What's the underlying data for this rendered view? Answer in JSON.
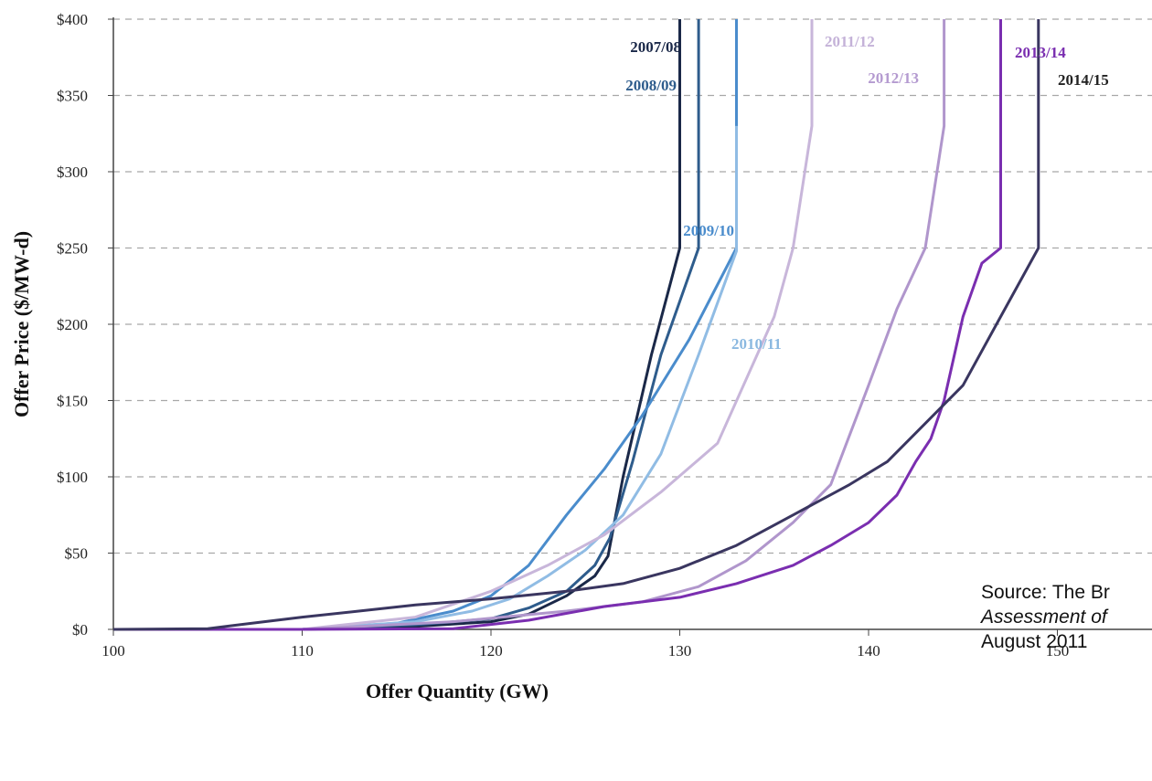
{
  "chart_data": {
    "type": "line",
    "title": "",
    "xlabel": "Offer Quantity (GW)",
    "ylabel": "Offer Price ($/MW-d)",
    "xlim": [
      100,
      155
    ],
    "ylim": [
      0,
      400
    ],
    "x_ticks": [
      100,
      110,
      120,
      130,
      140,
      150
    ],
    "x_tick_labels": [
      "100",
      "110",
      "120",
      "130",
      "140",
      "150"
    ],
    "y_ticks": [
      0,
      50,
      100,
      150,
      200,
      250,
      300,
      350,
      400
    ],
    "y_tick_labels": [
      "$0",
      "$50",
      "$100",
      "$150",
      "$200",
      "$250",
      "$300",
      "$350",
      "$400"
    ],
    "grid": "horizontal dashed",
    "series": [
      {
        "name": "2007/08",
        "color": "#1a2848",
        "label_color": "#1a2848",
        "points": [
          [
            100,
            0
          ],
          [
            110,
            0
          ],
          [
            116,
            2
          ],
          [
            120,
            5
          ],
          [
            122,
            10
          ],
          [
            124,
            22
          ],
          [
            125.5,
            35
          ],
          [
            126.2,
            48
          ],
          [
            127,
            100
          ],
          [
            128.5,
            180
          ],
          [
            130,
            250
          ],
          [
            130,
            400
          ]
        ]
      },
      {
        "name": "2008/09",
        "color": "#2e5c8c",
        "label_color": "#2e5c8c",
        "points": [
          [
            100,
            0
          ],
          [
            110,
            0
          ],
          [
            116,
            3
          ],
          [
            120,
            7
          ],
          [
            122,
            14
          ],
          [
            124,
            25
          ],
          [
            125.5,
            42
          ],
          [
            126.3,
            60
          ],
          [
            127.5,
            110
          ],
          [
            129,
            180
          ],
          [
            131,
            250
          ],
          [
            131,
            400
          ]
        ]
      },
      {
        "name": "2009/10",
        "color": "#4a8ccc",
        "label_color": "#4a8ccc",
        "points": [
          [
            100,
            0
          ],
          [
            110,
            0
          ],
          [
            115,
            4
          ],
          [
            118,
            12
          ],
          [
            120,
            22
          ],
          [
            122,
            42
          ],
          [
            124,
            75
          ],
          [
            126,
            105
          ],
          [
            128,
            140
          ],
          [
            130.5,
            190
          ],
          [
            133,
            250
          ],
          [
            133,
            400
          ]
        ]
      },
      {
        "name": "2010/11",
        "color": "#90bce4",
        "label_color": "#8ab8e0",
        "points": [
          [
            100,
            0
          ],
          [
            110,
            0
          ],
          [
            116,
            5
          ],
          [
            119,
            12
          ],
          [
            121,
            20
          ],
          [
            123,
            35
          ],
          [
            125,
            52
          ],
          [
            127,
            75
          ],
          [
            129,
            115
          ],
          [
            131,
            180
          ],
          [
            133,
            248
          ],
          [
            133,
            330
          ]
        ]
      },
      {
        "name": "2011/12",
        "color": "#c8b6da",
        "label_color": "#c4b2d8",
        "points": [
          [
            100,
            0
          ],
          [
            110,
            0
          ],
          [
            116,
            8
          ],
          [
            120,
            25
          ],
          [
            123,
            42
          ],
          [
            126,
            62
          ],
          [
            129,
            90
          ],
          [
            132,
            122
          ],
          [
            135,
            205
          ],
          [
            136,
            250
          ],
          [
            137,
            330
          ],
          [
            137,
            400
          ]
        ]
      },
      {
        "name": "2012/13",
        "color": "#b096cc",
        "label_color": "#b49ad0",
        "points": [
          [
            100,
            0
          ],
          [
            110,
            0
          ],
          [
            118,
            5
          ],
          [
            124,
            12
          ],
          [
            128,
            18
          ],
          [
            131,
            28
          ],
          [
            133.5,
            45
          ],
          [
            136,
            70
          ],
          [
            138,
            95
          ],
          [
            140,
            160
          ],
          [
            141.5,
            210
          ],
          [
            143,
            250
          ],
          [
            144,
            330
          ],
          [
            144,
            400
          ]
        ]
      },
      {
        "name": "2013/14",
        "color": "#7a2eb0",
        "label_color": "#7a2eb0",
        "points": [
          [
            100,
            0
          ],
          [
            110,
            0
          ],
          [
            118,
            0.5
          ],
          [
            122,
            6
          ],
          [
            126,
            15
          ],
          [
            130,
            21
          ],
          [
            133,
            30
          ],
          [
            136,
            42
          ],
          [
            138,
            55
          ],
          [
            140,
            70
          ],
          [
            141.5,
            88
          ],
          [
            142.5,
            110
          ],
          [
            143.3,
            125
          ],
          [
            144,
            150
          ],
          [
            145,
            205
          ],
          [
            146,
            240
          ],
          [
            147,
            250
          ],
          [
            147,
            400
          ]
        ]
      },
      {
        "name": "2014/15",
        "color": "#3a3660",
        "label_color": "#222222",
        "points": [
          [
            100,
            0
          ],
          [
            105,
            0.5
          ],
          [
            108,
            5
          ],
          [
            110,
            8
          ],
          [
            113,
            12
          ],
          [
            116,
            16
          ],
          [
            120,
            20
          ],
          [
            124,
            25
          ],
          [
            127,
            30
          ],
          [
            130,
            40
          ],
          [
            133,
            55
          ],
          [
            136,
            75
          ],
          [
            139,
            95
          ],
          [
            141,
            110
          ],
          [
            143,
            135
          ],
          [
            145,
            160
          ],
          [
            147,
            205
          ],
          [
            149,
            250
          ],
          [
            149,
            400
          ]
        ]
      }
    ]
  },
  "source": {
    "line1": "Source: The Br",
    "line2": "Assessment of",
    "line3": "August 2011"
  }
}
